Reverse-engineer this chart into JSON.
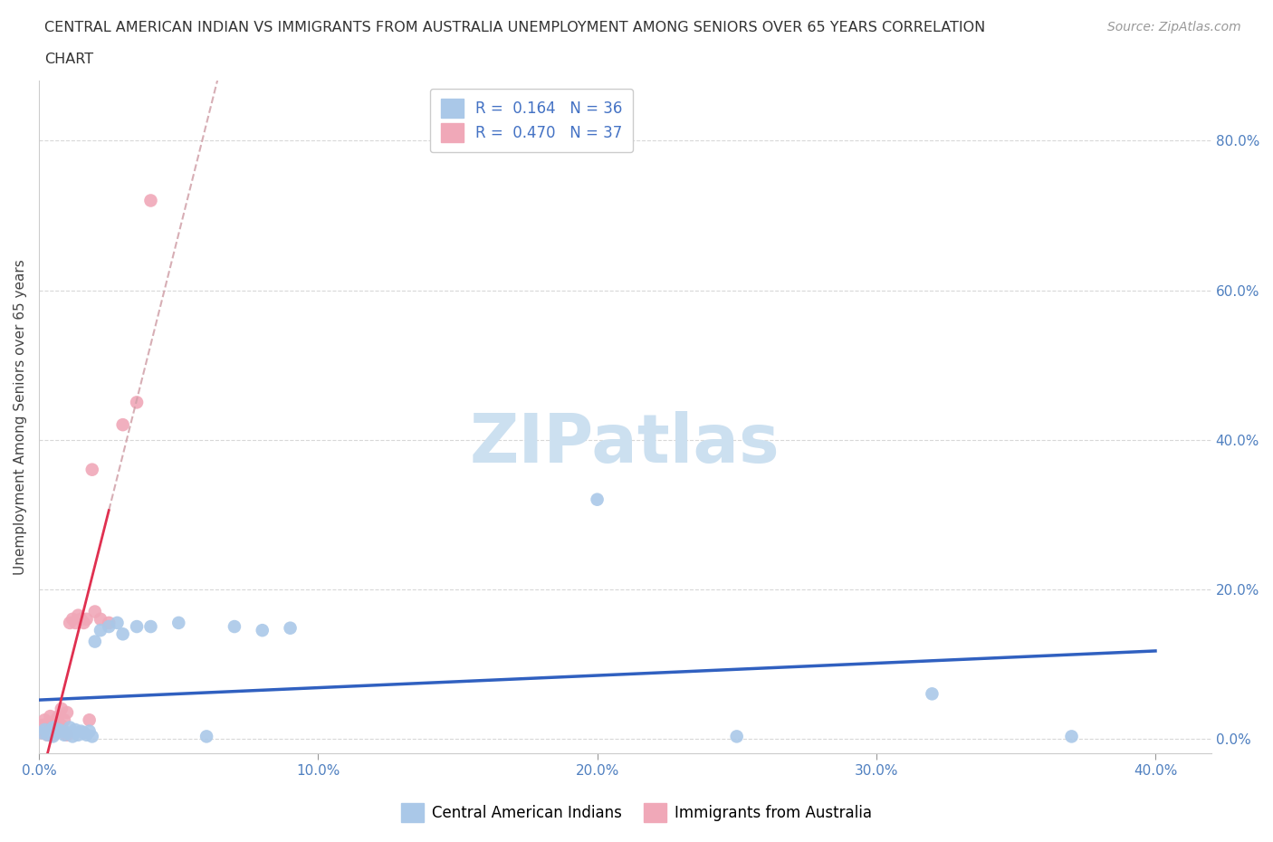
{
  "title_line1": "CENTRAL AMERICAN INDIAN VS IMMIGRANTS FROM AUSTRALIA UNEMPLOYMENT AMONG SENIORS OVER 65 YEARS CORRELATION",
  "title_line2": "CHART",
  "source_text": "Source: ZipAtlas.com",
  "ylabel": "Unemployment Among Seniors over 65 years",
  "xlim": [
    0.0,
    0.42
  ],
  "ylim": [
    -0.02,
    0.88
  ],
  "x_ticks": [
    0.0,
    0.1,
    0.2,
    0.3,
    0.4
  ],
  "y_ticks": [
    0.0,
    0.2,
    0.4,
    0.6,
    0.8
  ],
  "x_tick_labels": [
    "0.0%",
    "10.0%",
    "20.0%",
    "30.0%",
    "40.0%"
  ],
  "y_tick_labels_right": [
    "0.0%",
    "20.0%",
    "40.0%",
    "60.0%",
    "80.0%"
  ],
  "background_color": "#ffffff",
  "grid_color": "#d8d8d8",
  "grid_style": "--",
  "watermark_text": "ZIPatlas",
  "watermark_color": "#cce0f0",
  "legend_label1": "R =  0.164   N = 36",
  "legend_label2": "R =  0.470   N = 37",
  "color_blue": "#aac8e8",
  "color_pink": "#f0a8b8",
  "trendline_blue_color": "#3060c0",
  "trendline_pink_color": "#e03050",
  "trendline_dashed_color": "#d0a0a8",
  "blue_scatter_x": [
    0.001,
    0.002,
    0.003,
    0.004,
    0.005,
    0.005,
    0.006,
    0.007,
    0.008,
    0.009,
    0.01,
    0.011,
    0.012,
    0.013,
    0.014,
    0.015,
    0.016,
    0.017,
    0.018,
    0.019,
    0.02,
    0.022,
    0.025,
    0.028,
    0.03,
    0.035,
    0.04,
    0.05,
    0.06,
    0.07,
    0.08,
    0.09,
    0.2,
    0.25,
    0.32,
    0.37
  ],
  "blue_scatter_y": [
    0.008,
    0.012,
    0.005,
    0.01,
    0.015,
    0.003,
    0.008,
    0.012,
    0.01,
    0.005,
    0.008,
    0.015,
    0.003,
    0.012,
    0.005,
    0.01,
    0.008,
    0.005,
    0.01,
    0.003,
    0.13,
    0.145,
    0.15,
    0.155,
    0.14,
    0.15,
    0.15,
    0.155,
    0.003,
    0.15,
    0.145,
    0.148,
    0.32,
    0.003,
    0.06,
    0.003
  ],
  "pink_scatter_x": [
    0.001,
    0.001,
    0.002,
    0.002,
    0.003,
    0.003,
    0.004,
    0.004,
    0.005,
    0.005,
    0.005,
    0.006,
    0.006,
    0.006,
    0.007,
    0.007,
    0.008,
    0.008,
    0.009,
    0.009,
    0.01,
    0.01,
    0.011,
    0.012,
    0.013,
    0.014,
    0.015,
    0.016,
    0.017,
    0.018,
    0.019,
    0.02,
    0.022,
    0.025,
    0.03,
    0.035,
    0.04
  ],
  "pink_scatter_y": [
    0.008,
    0.018,
    0.01,
    0.025,
    0.005,
    0.02,
    0.008,
    0.03,
    0.012,
    0.02,
    0.005,
    0.015,
    0.025,
    0.008,
    0.012,
    0.03,
    0.018,
    0.04,
    0.008,
    0.025,
    0.005,
    0.035,
    0.155,
    0.16,
    0.155,
    0.165,
    0.16,
    0.155,
    0.16,
    0.025,
    0.36,
    0.17,
    0.16,
    0.155,
    0.42,
    0.45,
    0.72
  ],
  "pink_trendline_x0": 0.0,
  "pink_trendline_y0": 0.0,
  "pink_trendline_x_solid_end": 0.025,
  "pink_trendline_x_dashed_end": 0.4,
  "blue_trendline_y_at_0": 0.02,
  "blue_trendline_y_at_40": 0.13
}
